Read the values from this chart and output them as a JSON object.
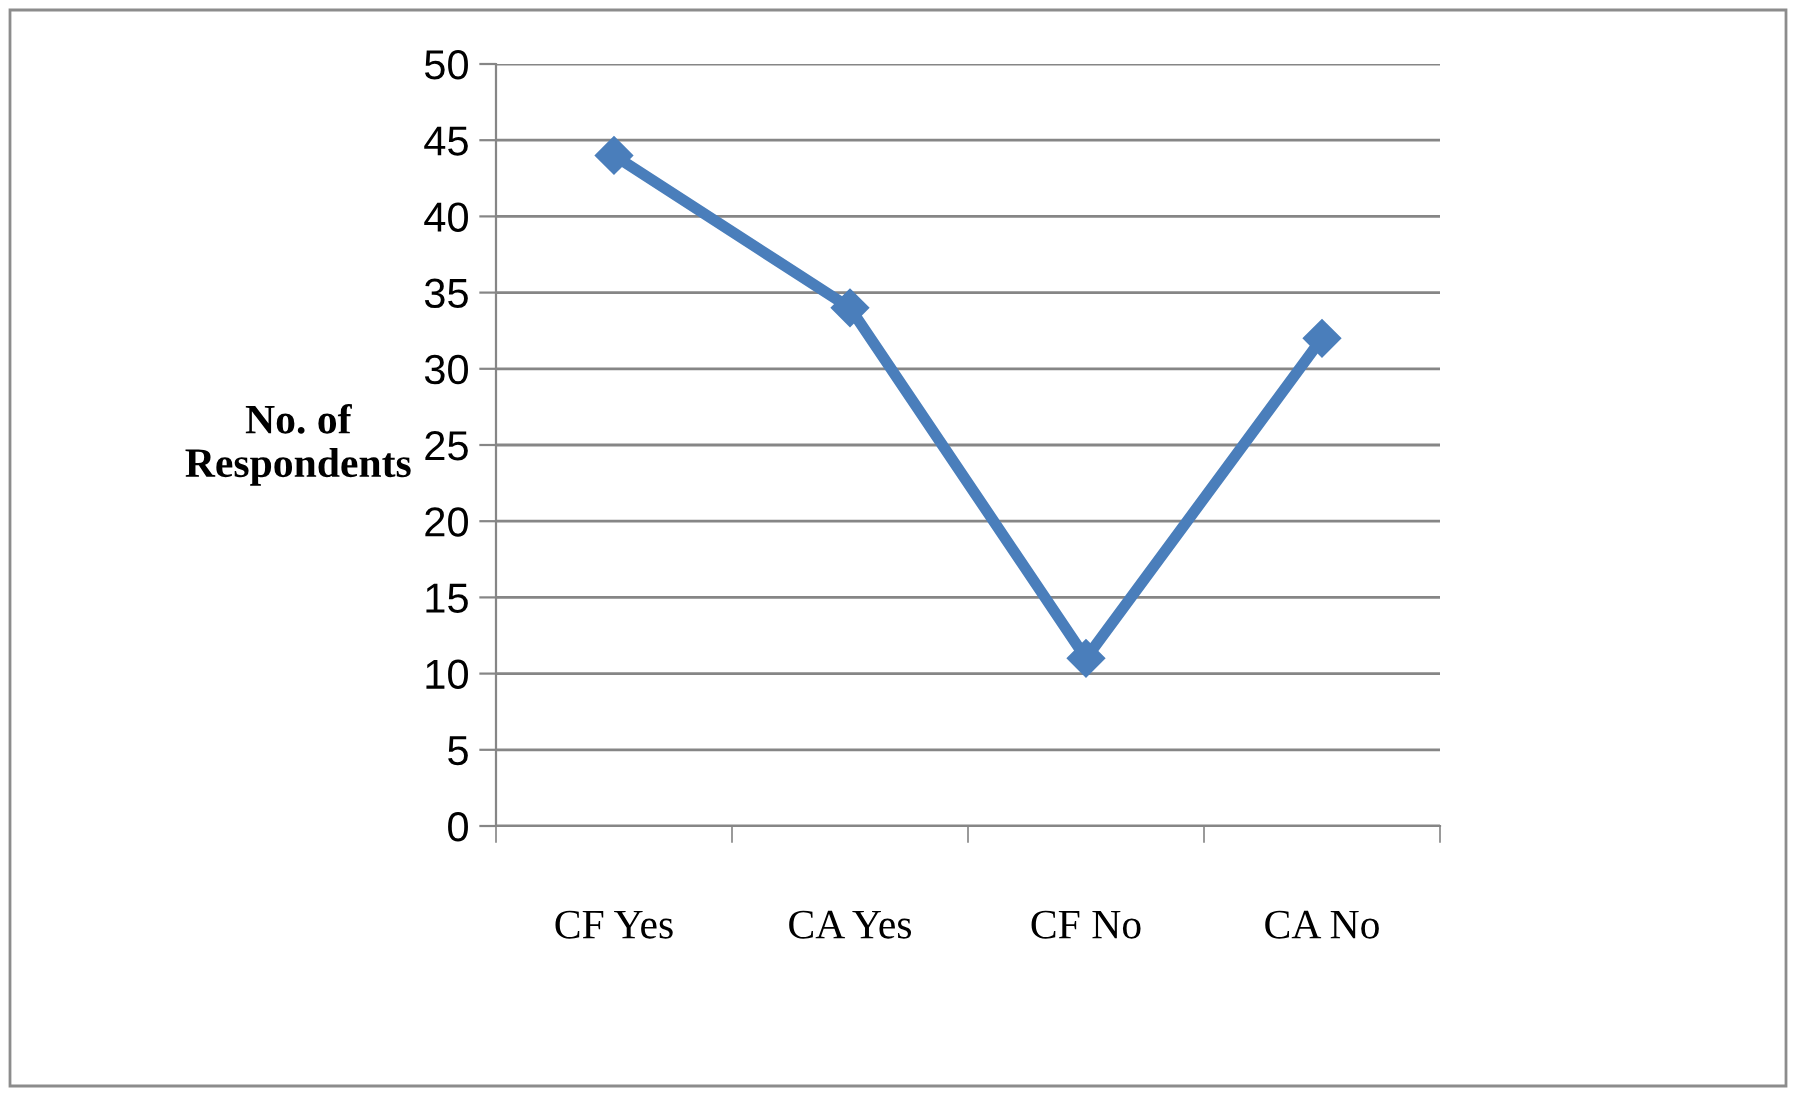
{
  "chart_data": {
    "type": "line",
    "ylabel": "No. of\nRespondents",
    "categories": [
      "CF Yes",
      "CA Yes",
      "CF No",
      "CA No"
    ],
    "series": [
      {
        "color": "#4a7ebb",
        "values": [
          44,
          34,
          11,
          32
        ]
      }
    ],
    "ylim": [
      0,
      50
    ],
    "yticks": [
      0,
      5,
      10,
      15,
      20,
      25,
      30,
      35,
      40,
      45,
      50
    ],
    "grid": "y",
    "marker": "diamond",
    "line_style": "solid",
    "legend": false
  }
}
